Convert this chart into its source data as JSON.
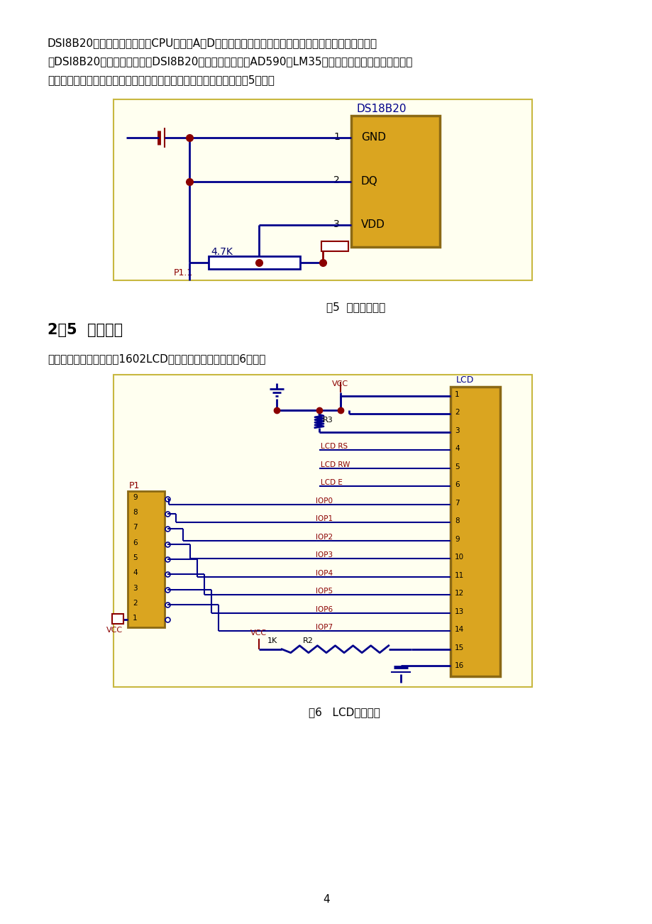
{
  "bg_color": "#ffffff",
  "diagram_bg": "#FFFFF0",
  "blue": "#00008B",
  "darkred": "#8B0000",
  "gold": "#DAA520",
  "gold_edge": "#8B6914",
  "page_text1": "DSl8B20的数据总线直接输入CPU，无需A／D转换，而且读写指令、温度转换指令都是通过数据总线传",
  "page_text2": "入DSl8B20，无需外部电源。DSl8B20数字温度传感器与AD590、LM35等温度传感器相比，具有相当的",
  "page_text3": "测温范围和精度，温度测量精确、不受外界干扰等优点。硬件结构如图5所示。",
  "fig5_caption": "图5  温度检测电路",
  "section_title": "2．5  显示电路",
  "body_text": "本系统中的显示部分采用1602LCD液晶显示。具体接口如图6所示。",
  "fig6_caption": "图6   LCD显示电路",
  "page_num": "4"
}
